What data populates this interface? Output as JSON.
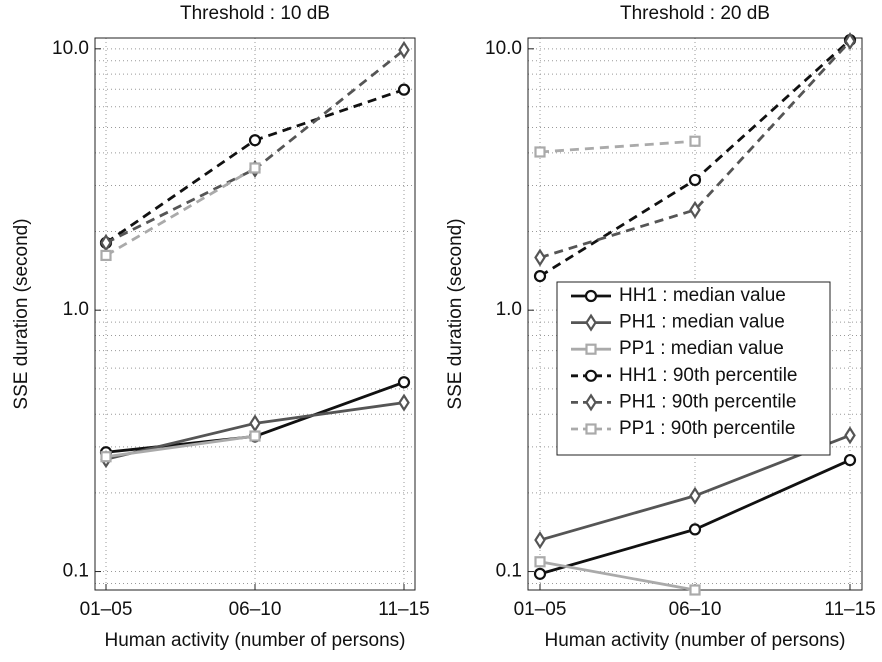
{
  "chart_data": [
    {
      "type": "line",
      "title": "Threshold : 10 dB",
      "xlabel": "Human activity (number of persons)",
      "ylabel": "SSE duration (second)",
      "categories": [
        "01–05",
        "06–10",
        "11–15"
      ],
      "log_y": true,
      "grid": true,
      "ylim": [
        0.085,
        11
      ],
      "yticks": [
        0.1,
        {
          "value": 1,
          "label": "1.0"
        },
        {
          "value": 10,
          "label": "10.0"
        }
      ],
      "yminor": [
        0.09,
        0.2,
        0.3,
        0.4,
        0.5,
        0.6,
        0.7,
        0.8,
        0.9,
        2,
        3,
        4,
        5,
        6,
        7,
        8,
        9
      ],
      "series": [
        {
          "name": "HH1 : median value",
          "color": "#111111",
          "style": "solid",
          "marker": "circle",
          "values": [
            0.286,
            0.329,
            0.53
          ]
        },
        {
          "name": "PH1 : median value",
          "color": "#555555",
          "style": "solid",
          "marker": "diamond",
          "values": [
            0.269,
            0.369,
            0.443
          ]
        },
        {
          "name": "PP1 : median value",
          "color": "#aaaaaa",
          "style": "solid",
          "marker": "square",
          "values": [
            0.275,
            0.33,
            null
          ]
        },
        {
          "name": "HH1 : 90th percentile",
          "color": "#111111",
          "style": "dashed",
          "marker": "circle",
          "values": [
            1.81,
            4.47,
            6.98
          ]
        },
        {
          "name": "PH1 : 90th percentile",
          "color": "#555555",
          "style": "dashed",
          "marker": "diamond",
          "values": [
            1.81,
            3.47,
            9.9
          ]
        },
        {
          "name": "PP1 : 90th percentile",
          "color": "#aaaaaa",
          "style": "dashed",
          "marker": "square",
          "values": [
            1.62,
            3.5,
            null
          ]
        }
      ]
    },
    {
      "type": "line",
      "title": "Threshold : 20 dB",
      "xlabel": "Human activity (number of persons)",
      "ylabel": "SSE duration (second)",
      "categories": [
        "01–05",
        "06–10",
        "11–15"
      ],
      "log_y": true,
      "grid": true,
      "legend": "right",
      "ylim": [
        0.085,
        11
      ],
      "yticks": [
        0.1,
        {
          "value": 1,
          "label": "1.0"
        },
        {
          "value": 10,
          "label": "10.0"
        }
      ],
      "yminor": [
        0.09,
        0.2,
        0.3,
        0.4,
        0.5,
        0.6,
        0.7,
        0.8,
        0.9,
        2,
        3,
        4,
        5,
        6,
        7,
        8,
        9
      ],
      "series": [
        {
          "name": "HH1 : median value",
          "color": "#111111",
          "style": "solid",
          "marker": "circle",
          "values": [
            0.098,
            0.145,
            0.267
          ]
        },
        {
          "name": "PH1 : median value",
          "color": "#555555",
          "style": "solid",
          "marker": "diamond",
          "values": [
            0.132,
            0.195,
            0.332
          ]
        },
        {
          "name": "PP1 : median value",
          "color": "#aaaaaa",
          "style": "solid",
          "marker": "square",
          "values": [
            0.109,
            0.085,
            null
          ]
        },
        {
          "name": "HH1 : 90th percentile",
          "color": "#111111",
          "style": "dashed",
          "marker": "circle",
          "values": [
            1.35,
            3.15,
            10.8
          ]
        },
        {
          "name": "PH1 : 90th percentile",
          "color": "#555555",
          "style": "dashed",
          "marker": "diamond",
          "values": [
            1.59,
            2.42,
            10.7
          ]
        },
        {
          "name": "PP1 : 90th percentile",
          "color": "#aaaaaa",
          "style": "dashed",
          "marker": "square",
          "values": [
            4.03,
            4.43,
            null
          ]
        }
      ]
    }
  ]
}
